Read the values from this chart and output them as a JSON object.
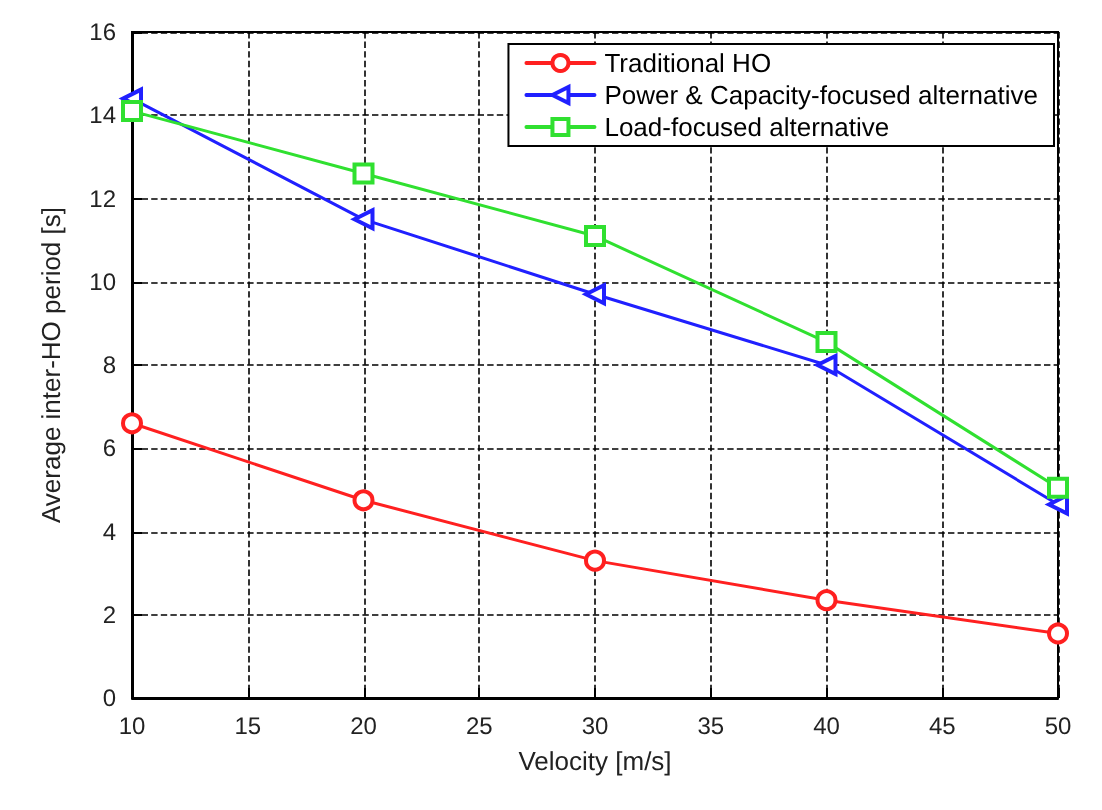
{
  "chart_data": {
    "type": "line",
    "xlabel": "Velocity [m/s]",
    "ylabel": "Average inter-HO period [s]",
    "x": [
      10,
      20,
      30,
      40,
      50
    ],
    "xlim": [
      10,
      50
    ],
    "xticks": [
      10,
      15,
      20,
      25,
      30,
      35,
      40,
      45,
      50
    ],
    "ylim": [
      0,
      16
    ],
    "yticks": [
      0,
      2,
      4,
      6,
      8,
      10,
      12,
      14,
      16
    ],
    "grid": true,
    "legend": "top right",
    "line_style": "solid",
    "series": [
      {
        "name": "Traditional HO",
        "color": "#ff2020",
        "marker": "circle",
        "values": [
          6.6,
          4.75,
          3.3,
          2.35,
          1.55
        ]
      },
      {
        "name": "Power & Capacity-focused alternative",
        "color": "#2020ff",
        "marker": "triangle",
        "values": [
          14.4,
          11.5,
          9.7,
          8.0,
          4.65
        ]
      },
      {
        "name": "Load-focused alternative",
        "color": "#30e030",
        "marker": "square",
        "values": [
          14.1,
          12.6,
          11.1,
          8.55,
          5.05
        ]
      }
    ]
  }
}
